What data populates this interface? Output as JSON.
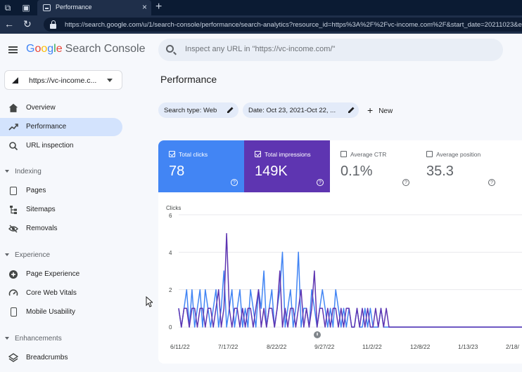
{
  "browser": {
    "tab_title": "Performance",
    "url": "https://search.google.com/u/1/search-console/performance/search-analytics?resource_id=https%3A%2F%2Fvc-income.com%2F&start_date=20211023&end"
  },
  "header": {
    "logo_google": [
      "G",
      "o",
      "o",
      "g",
      "l",
      "e"
    ],
    "product": "Search Console",
    "search_placeholder": "Inspect any URL in \"https://vc-income.com/\""
  },
  "property": {
    "label": "https://vc-income.c..."
  },
  "sidebar": {
    "items": [
      {
        "label": "Overview"
      },
      {
        "label": "Performance"
      },
      {
        "label": "URL inspection"
      }
    ],
    "sections": [
      {
        "label": "Indexing",
        "items": [
          {
            "label": "Pages"
          },
          {
            "label": "Sitemaps"
          },
          {
            "label": "Removals"
          }
        ]
      },
      {
        "label": "Experience",
        "items": [
          {
            "label": "Page Experience"
          },
          {
            "label": "Core Web Vitals"
          },
          {
            "label": "Mobile Usability"
          }
        ]
      },
      {
        "label": "Enhancements",
        "items": [
          {
            "label": "Breadcrumbs"
          }
        ]
      }
    ]
  },
  "main": {
    "title": "Performance",
    "filters": [
      {
        "label": "Search type: Web"
      },
      {
        "label": "Date: Oct 23, 2021-Oct 22, ..."
      }
    ],
    "new_label": "New",
    "metrics": [
      {
        "label": "Total clicks",
        "value": "78",
        "checked": true
      },
      {
        "label": "Total impressions",
        "value": "149K",
        "checked": true
      },
      {
        "label": "Average CTR",
        "value": "0.1%",
        "checked": false
      },
      {
        "label": "Average position",
        "value": "35.3",
        "checked": false
      }
    ],
    "help_glyph": "?"
  },
  "colors": {
    "clicks": "#4285f4",
    "impressions": "#5e35b1",
    "active_nav": "#d3e3fd"
  },
  "chart_data": {
    "type": "line",
    "title": "",
    "ylabel": "Clicks",
    "ylim": [
      0,
      6
    ],
    "yticks": [
      "0",
      "2",
      "4",
      "6"
    ],
    "xticks": [
      "6/11/22",
      "7/17/22",
      "8/22/22",
      "9/27/22",
      "11/2/22",
      "12/8/22",
      "1/13/23",
      "2/18/"
    ],
    "series": [
      {
        "name": "Clicks",
        "color": "#4285f4",
        "values": [
          1,
          0,
          1,
          2,
          0,
          2,
          0,
          1,
          2,
          0,
          2,
          1,
          0,
          1,
          2,
          0,
          1,
          3,
          0,
          1,
          2,
          0,
          1,
          2,
          0,
          1,
          0,
          2,
          1,
          0,
          2,
          1,
          3,
          0,
          1,
          2,
          0,
          1,
          2,
          4,
          0,
          1,
          2,
          0,
          1,
          4,
          0,
          1,
          1,
          0,
          2,
          1,
          0,
          1,
          2,
          1,
          0,
          1,
          0,
          2,
          1,
          0,
          1,
          0,
          1,
          0,
          0,
          1,
          0,
          0,
          1,
          0,
          1,
          0,
          0,
          0,
          1,
          0,
          0,
          0,
          0,
          0,
          0,
          0,
          0,
          0,
          0,
          0,
          0,
          0,
          0,
          0,
          0,
          0,
          0,
          0,
          0,
          0,
          0,
          0,
          0,
          0,
          0,
          0,
          0,
          0,
          0,
          0,
          0,
          0,
          0,
          0,
          0,
          0,
          0,
          0,
          0,
          0,
          0,
          0,
          0,
          0,
          0,
          0,
          0,
          0,
          0,
          0,
          0,
          0
        ]
      },
      {
        "name": "Impressions",
        "color": "#5e35b1",
        "values": [
          1,
          0,
          1,
          1,
          0,
          1,
          1,
          0,
          1,
          1,
          0,
          1,
          1,
          0,
          1,
          2,
          0,
          1,
          5,
          1,
          0,
          1,
          1,
          0,
          1,
          0,
          1,
          1,
          0,
          1,
          2,
          0,
          1,
          0,
          1,
          1,
          0,
          1,
          3,
          0,
          1,
          0,
          1,
          1,
          0,
          1,
          2,
          0,
          1,
          0,
          1,
          3,
          0,
          1,
          1,
          0,
          1,
          0,
          1,
          1,
          0,
          1,
          0,
          1,
          1,
          0,
          0,
          1,
          0,
          1,
          0,
          1,
          0,
          0,
          1,
          0,
          1,
          0,
          1,
          0,
          0,
          0,
          0,
          0,
          0,
          0,
          0,
          0,
          0,
          0,
          0,
          0,
          0,
          0,
          0,
          0,
          0,
          0,
          0,
          0,
          0,
          0,
          0,
          0,
          0,
          0,
          0,
          0,
          0,
          0,
          0,
          0,
          0,
          0,
          0,
          0,
          0,
          0,
          0,
          0,
          0,
          0,
          0,
          0,
          0,
          0,
          0,
          0,
          0,
          0
        ]
      }
    ]
  }
}
